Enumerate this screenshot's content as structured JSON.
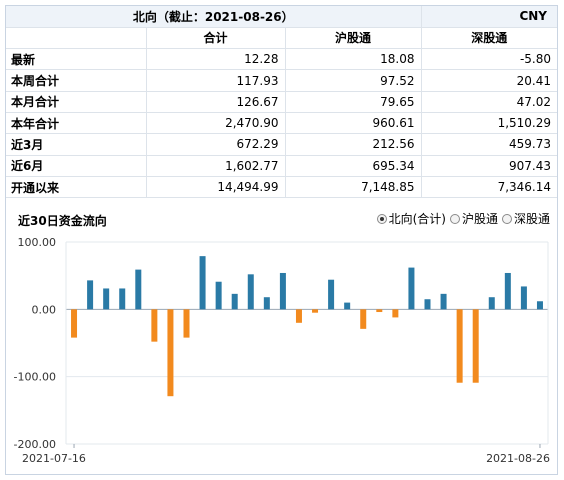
{
  "table": {
    "title": "北向（截止：2021-08-26）",
    "currency": "CNY",
    "columns": [
      "合计",
      "沪股通",
      "深股通"
    ],
    "rows": [
      {
        "label": "最新",
        "values": [
          "12.28",
          "18.08",
          "-5.80"
        ]
      },
      {
        "label": "本周合计",
        "values": [
          "117.93",
          "97.52",
          "20.41"
        ]
      },
      {
        "label": "本月合计",
        "values": [
          "126.67",
          "79.65",
          "47.02"
        ]
      },
      {
        "label": "本年合计",
        "values": [
          "2,470.90",
          "960.61",
          "1,510.29"
        ]
      },
      {
        "label": "近3月",
        "values": [
          "672.29",
          "212.56",
          "459.73"
        ]
      },
      {
        "label": "近6月",
        "values": [
          "1,602.77",
          "695.34",
          "907.43"
        ]
      },
      {
        "label": "开通以来",
        "values": [
          "14,494.99",
          "7,148.85",
          "7,346.14"
        ]
      }
    ]
  },
  "chart_panel": {
    "title": "近30日资金流向",
    "legend": [
      {
        "label": "北向(合计)",
        "selected": true
      },
      {
        "label": "沪股通",
        "selected": false
      },
      {
        "label": "深股通",
        "selected": false
      }
    ]
  },
  "colors": {
    "positive": "#2a7aa6",
    "negative": "#f28a1e"
  },
  "chart_data": {
    "type": "bar",
    "title": "近30日资金流向",
    "series": [
      {
        "name": "北向(合计)",
        "values": [
          -42,
          43,
          31,
          31,
          59,
          -48,
          -129,
          -42,
          79,
          41,
          23,
          52,
          18,
          54,
          -20,
          -5,
          44,
          10,
          -29,
          -4,
          -12,
          62,
          15,
          23,
          -109,
          -109,
          18,
          54,
          34,
          12
        ]
      }
    ],
    "ylim": [
      -200,
      100
    ],
    "yticks": [
      "100.00",
      "0.00",
      "-100.00",
      "-200.00"
    ],
    "x_start_label": "2021-07-16",
    "x_end_label": "2021-08-26",
    "grid": true
  }
}
